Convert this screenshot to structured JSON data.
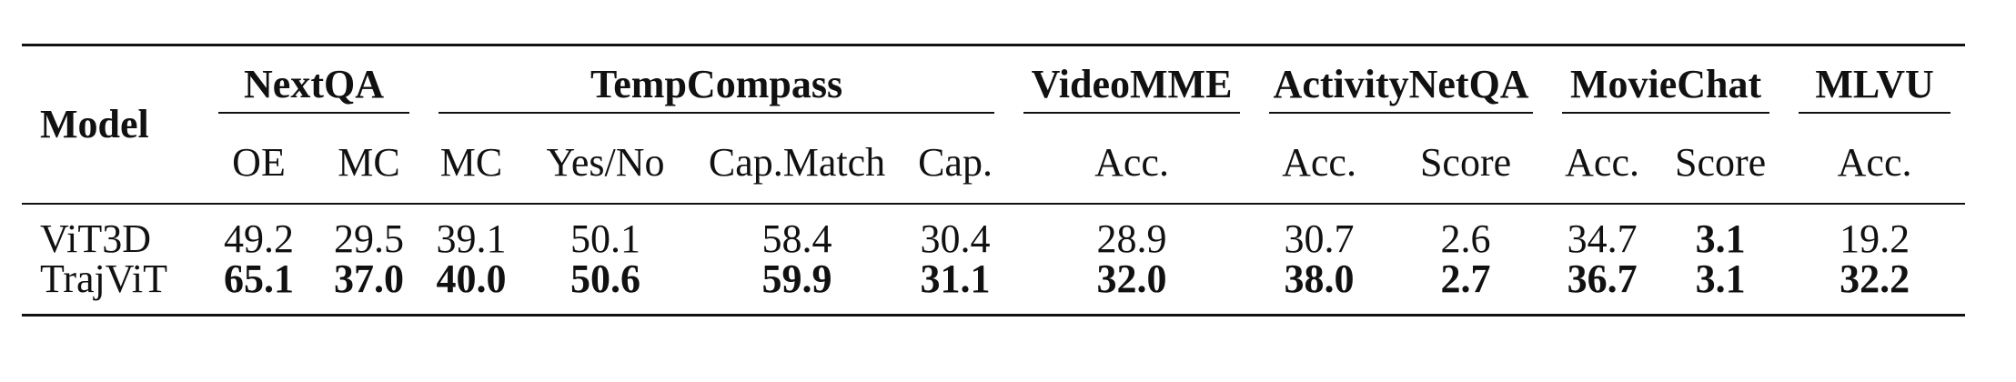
{
  "table": {
    "model_header": "Model",
    "groups": [
      {
        "label": "NextQA",
        "span": 2
      },
      {
        "label": "TempCompass",
        "span": 4
      },
      {
        "label": "VideoMME",
        "span": 1
      },
      {
        "label": "ActivityNetQA",
        "span": 2
      },
      {
        "label": "MovieChat",
        "span": 2
      },
      {
        "label": "MLVU",
        "span": 1
      }
    ],
    "subheaders": [
      "OE",
      "MC",
      "MC",
      "Yes/No",
      "Cap.Match",
      "Cap.",
      "Acc.",
      "Acc.",
      "Score",
      "Acc.",
      "Score",
      "Acc."
    ],
    "rows": [
      {
        "model": "ViT3D",
        "values": [
          "49.2",
          "29.5",
          "39.1",
          "50.1",
          "58.4",
          "30.4",
          "28.9",
          "30.7",
          "2.6",
          "34.7",
          "3.1",
          "19.2"
        ],
        "bold": [
          false,
          false,
          false,
          false,
          false,
          false,
          false,
          false,
          false,
          false,
          true,
          false
        ]
      },
      {
        "model": "TrajViT",
        "values": [
          "65.1",
          "37.0",
          "40.0",
          "50.6",
          "59.9",
          "31.1",
          "32.0",
          "38.0",
          "2.7",
          "36.7",
          "3.1",
          "32.2"
        ],
        "bold": [
          true,
          true,
          true,
          true,
          true,
          true,
          true,
          true,
          true,
          true,
          true,
          true
        ]
      }
    ]
  }
}
